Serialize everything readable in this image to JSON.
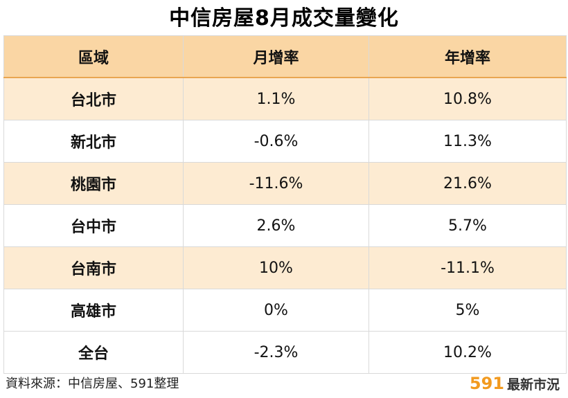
{
  "title": "中信房屋8月成交量變化",
  "chart_data": {
    "type": "table",
    "title": "中信房屋8月成交量變化",
    "columns": [
      "區域",
      "月增率",
      "年增率"
    ],
    "rows": [
      {
        "region": "台北市",
        "mom": "1.1%",
        "yoy": "10.8%"
      },
      {
        "region": "新北市",
        "mom": "-0.6%",
        "yoy": "11.3%"
      },
      {
        "region": "桃園市",
        "mom": "-11.6%",
        "yoy": "21.6%"
      },
      {
        "region": "台中市",
        "mom": "2.6%",
        "yoy": "5.7%"
      },
      {
        "region": "台南市",
        "mom": "10%",
        "yoy": "-11.1%"
      },
      {
        "region": "高雄市",
        "mom": "0%",
        "yoy": "5%"
      },
      {
        "region": "全台",
        "mom": "-2.3%",
        "yoy": "10.2%"
      }
    ]
  },
  "footer": {
    "source": "資料來源：中信房屋、591整理",
    "brand_number": "591",
    "brand_text": "最新市況"
  },
  "colors": {
    "header_bg": "#fad6a4",
    "stripe_bg": "#fdebd2",
    "brand_accent": "#f29a1f"
  }
}
